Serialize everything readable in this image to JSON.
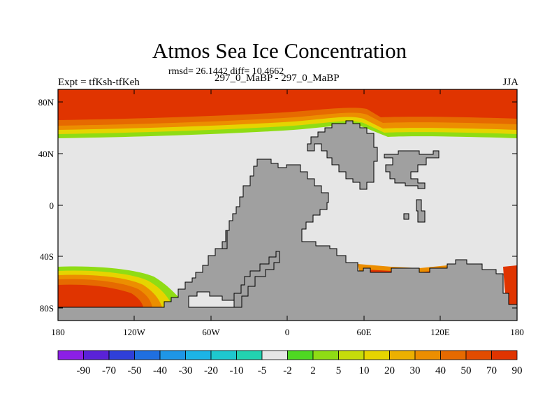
{
  "header": {
    "title": "Atmos Sea Ice Concentration",
    "stats": "rmsd= 26.1442 diff= 10.4662",
    "expt": "Expt = tfKsh-tfKeh",
    "cases": "297_0_MaBP - 297_0_MaBP",
    "season": "JJA"
  },
  "axes": {
    "lat_ticks": [
      "80N",
      "40N",
      "0",
      "40S",
      "80S"
    ],
    "lon_ticks": [
      "180",
      "120W",
      "60W",
      "0",
      "60E",
      "120E",
      "180"
    ]
  },
  "colorbar": {
    "labels": [
      "-90",
      "-70",
      "-50",
      "-40",
      "-30",
      "-20",
      "-10",
      "-5",
      "-2",
      "2",
      "5",
      "10",
      "20",
      "30",
      "40",
      "50",
      "70",
      "90"
    ],
    "colors": [
      "#8c1fe6",
      "#5a22d8",
      "#2f3fd9",
      "#1f6fe0",
      "#1e96e6",
      "#1cb4e6",
      "#1ec8cf",
      "#22d2b0",
      "#e6e6e6",
      "#4ed822",
      "#8fdc14",
      "#c6dc0a",
      "#e6d400",
      "#ecb000",
      "#ec8e00",
      "#e66a00",
      "#e24c00",
      "#e03400"
    ]
  },
  "colors": {
    "land": "#a0a0a0",
    "no_change": "#e6e6e6",
    "ice_max": "#e03400"
  }
}
